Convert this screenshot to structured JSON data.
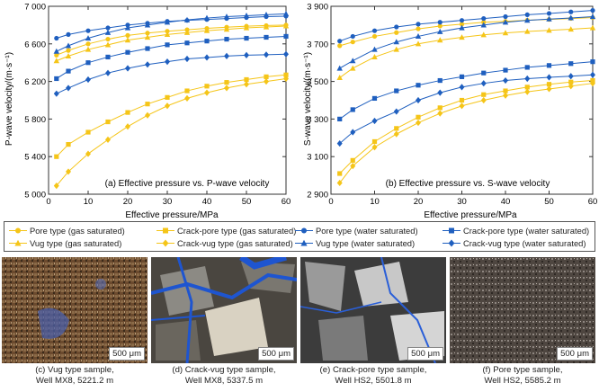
{
  "chart_data": [
    {
      "type": "line",
      "panel_label": "(a) Effective pressure vs. P-wave velocity",
      "xlabel": "Effective pressure/MPa",
      "ylabel": "P-wave velocity/(m·s⁻¹)",
      "xlim": [
        0,
        60
      ],
      "ylim": [
        5000,
        7000
      ],
      "x_ticks": [
        "0",
        "10",
        "20",
        "30",
        "40",
        "50",
        "60"
      ],
      "y_ticks": [
        "5 000",
        "5 400",
        "5 800",
        "6 200",
        "6 600",
        "7 000"
      ],
      "x": [
        2,
        5,
        10,
        15,
        20,
        25,
        30,
        35,
        40,
        45,
        50,
        55,
        60
      ],
      "series": [
        {
          "name": "Pore type (gas saturated)",
          "color": "#f5c518",
          "marker": "circle",
          "values": [
            6480,
            6530,
            6600,
            6650,
            6690,
            6715,
            6735,
            6750,
            6765,
            6778,
            6788,
            6795,
            6800
          ]
        },
        {
          "name": "Crack-pore type (gas saturated)",
          "color": "#f5c518",
          "marker": "square",
          "values": [
            5400,
            5530,
            5660,
            5770,
            5870,
            5960,
            6030,
            6100,
            6150,
            6190,
            6220,
            6250,
            6270
          ]
        },
        {
          "name": "Vug type (gas saturated)",
          "color": "#f5c518",
          "marker": "triangle",
          "values": [
            6420,
            6470,
            6540,
            6590,
            6640,
            6670,
            6700,
            6720,
            6740,
            6755,
            6770,
            6780,
            6790
          ]
        },
        {
          "name": "Crack-vug type (gas saturated)",
          "color": "#f5c518",
          "marker": "diamond",
          "values": [
            5090,
            5240,
            5430,
            5580,
            5720,
            5840,
            5940,
            6020,
            6080,
            6130,
            6170,
            6200,
            6230
          ]
        },
        {
          "name": "Pore type (water saturated)",
          "color": "#1f5fbf",
          "marker": "circle",
          "values": [
            6660,
            6700,
            6740,
            6770,
            6800,
            6820,
            6840,
            6850,
            6860,
            6870,
            6880,
            6890,
            6895
          ]
        },
        {
          "name": "Crack-pore type (water saturated)",
          "color": "#1f5fbf",
          "marker": "square",
          "values": [
            6230,
            6310,
            6400,
            6460,
            6510,
            6550,
            6590,
            6610,
            6630,
            6650,
            6660,
            6670,
            6680
          ]
        },
        {
          "name": "Vug type (water saturated)",
          "color": "#1f5fbf",
          "marker": "triangle",
          "values": [
            6520,
            6580,
            6660,
            6720,
            6770,
            6800,
            6830,
            6855,
            6875,
            6890,
            6900,
            6910,
            6920
          ]
        },
        {
          "name": "Crack-vug type (water saturated)",
          "color": "#1f5fbf",
          "marker": "diamond",
          "values": [
            6070,
            6130,
            6220,
            6290,
            6340,
            6380,
            6410,
            6440,
            6455,
            6470,
            6480,
            6485,
            6490
          ]
        }
      ]
    },
    {
      "type": "line",
      "panel_label": "(b) Effective pressure vs. S-wave velocity",
      "xlabel": "Effective pressure/MPa",
      "ylabel": "S-wave velocity/(m·s⁻¹)",
      "xlim": [
        0,
        60
      ],
      "ylim": [
        2900,
        3900
      ],
      "x_ticks": [
        "0",
        "10",
        "20",
        "30",
        "40",
        "50",
        "60"
      ],
      "y_ticks": [
        "2 900",
        "3 100",
        "3 300",
        "3 500",
        "3 700",
        "3 900"
      ],
      "x": [
        2,
        5,
        10,
        15,
        20,
        25,
        30,
        35,
        40,
        45,
        50,
        55,
        60
      ],
      "series": [
        {
          "name": "Pore type (gas saturated)",
          "color": "#f5c518",
          "marker": "circle",
          "values": [
            3690,
            3710,
            3740,
            3760,
            3780,
            3795,
            3805,
            3815,
            3820,
            3826,
            3830,
            3835,
            3840
          ]
        },
        {
          "name": "Crack-pore type (gas saturated)",
          "color": "#f5c518",
          "marker": "square",
          "values": [
            3010,
            3080,
            3180,
            3250,
            3310,
            3360,
            3400,
            3430,
            3450,
            3470,
            3485,
            3497,
            3505
          ]
        },
        {
          "name": "Vug type (gas saturated)",
          "color": "#f5c518",
          "marker": "triangle",
          "values": [
            3520,
            3570,
            3630,
            3670,
            3700,
            3720,
            3735,
            3748,
            3758,
            3766,
            3772,
            3778,
            3785
          ]
        },
        {
          "name": "Crack-vug type (gas saturated)",
          "color": "#f5c518",
          "marker": "diamond",
          "values": [
            2960,
            3050,
            3150,
            3220,
            3280,
            3330,
            3370,
            3400,
            3425,
            3445,
            3460,
            3475,
            3490
          ]
        },
        {
          "name": "Pore type (water saturated)",
          "color": "#1f5fbf",
          "marker": "circle",
          "values": [
            3715,
            3740,
            3770,
            3790,
            3805,
            3815,
            3825,
            3835,
            3845,
            3855,
            3862,
            3870,
            3878
          ]
        },
        {
          "name": "Crack-pore type (water saturated)",
          "color": "#1f5fbf",
          "marker": "square",
          "values": [
            3300,
            3350,
            3410,
            3450,
            3480,
            3505,
            3525,
            3545,
            3560,
            3575,
            3585,
            3595,
            3605
          ]
        },
        {
          "name": "Vug type (water saturated)",
          "color": "#1f5fbf",
          "marker": "triangle",
          "values": [
            3570,
            3610,
            3670,
            3710,
            3740,
            3765,
            3785,
            3800,
            3815,
            3825,
            3832,
            3838,
            3845
          ]
        },
        {
          "name": "Crack-vug type (water saturated)",
          "color": "#1f5fbf",
          "marker": "diamond",
          "values": [
            3170,
            3230,
            3290,
            3340,
            3400,
            3440,
            3470,
            3490,
            3505,
            3515,
            3522,
            3528,
            3535
          ]
        }
      ]
    }
  ],
  "legend": [
    {
      "label": "Pore type (gas saturated)",
      "color": "#f5c518",
      "marker": "circle"
    },
    {
      "label": "Crack-pore type (gas saturated)",
      "color": "#f5c518",
      "marker": "square"
    },
    {
      "label": "Pore type (water saturated)",
      "color": "#1f5fbf",
      "marker": "circle"
    },
    {
      "label": "Crack-pore type (water saturated)",
      "color": "#1f5fbf",
      "marker": "square"
    },
    {
      "label": "Vug type (gas saturated)",
      "color": "#f5c518",
      "marker": "triangle"
    },
    {
      "label": "Crack-vug type (gas saturated)",
      "color": "#f5c518",
      "marker": "diamond"
    },
    {
      "label": "Vug type (water saturated)",
      "color": "#1f5fbf",
      "marker": "triangle"
    },
    {
      "label": "Crack-vug type (water saturated)",
      "color": "#1f5fbf",
      "marker": "diamond"
    }
  ],
  "photos": [
    {
      "scale_bar": "500 μm",
      "caption_line1": "(c) Vug type sample,",
      "caption_line2": "Well MX8, 5221.2 m"
    },
    {
      "scale_bar": "500 μm",
      "caption_line1": "(d) Crack-vug type sample,",
      "caption_line2": "Well MX8, 5337.5 m"
    },
    {
      "scale_bar": "500 μm",
      "caption_line1": "(e) Crack-pore type sample,",
      "caption_line2": "Well HS2, 5501.8 m"
    },
    {
      "scale_bar": "500 μm",
      "caption_line1": "(f) Pore type sample,",
      "caption_line2": "Well HS2, 5585.2 m"
    }
  ]
}
